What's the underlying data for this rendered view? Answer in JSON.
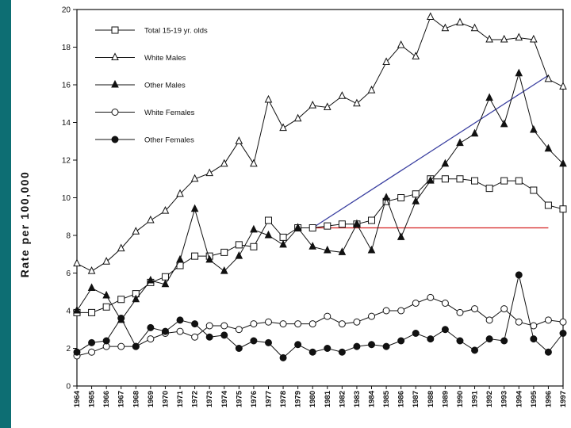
{
  "chart_data": {
    "type": "line",
    "title": "",
    "xlabel": "",
    "ylabel": "Rate per 100,000",
    "ylim": [
      0,
      20
    ],
    "yticks": [
      0,
      2,
      4,
      6,
      8,
      10,
      12,
      14,
      16,
      18,
      20
    ],
    "grid": false,
    "legend_position": "top-left",
    "x": [
      1964,
      1965,
      1966,
      1967,
      1968,
      1969,
      1970,
      1971,
      1972,
      1973,
      1974,
      1975,
      1976,
      1977,
      1978,
      1979,
      1980,
      1981,
      1982,
      1983,
      1984,
      1985,
      1986,
      1987,
      1988,
      1989,
      1990,
      1991,
      1992,
      1993,
      1994,
      1995,
      1996,
      1997
    ],
    "series": [
      {
        "name": "Total 15-19 yr. olds",
        "marker": "open-square",
        "values": [
          3.9,
          3.9,
          4.2,
          4.6,
          4.9,
          5.5,
          5.8,
          6.4,
          6.9,
          6.9,
          7.1,
          7.5,
          7.4,
          8.8,
          7.9,
          8.4,
          8.4,
          8.5,
          8.6,
          8.6,
          8.8,
          9.8,
          10.0,
          10.2,
          11.0,
          11.0,
          11.0,
          10.9,
          10.5,
          10.9,
          10.9,
          10.4,
          9.6,
          9.4
        ]
      },
      {
        "name": "White Males",
        "marker": "open-triangle",
        "values": [
          6.5,
          6.1,
          6.6,
          7.3,
          8.2,
          8.8,
          9.3,
          10.2,
          11.0,
          11.3,
          11.8,
          13.0,
          11.8,
          15.2,
          13.7,
          14.2,
          14.9,
          14.8,
          15.4,
          15.0,
          15.7,
          17.2,
          18.1,
          17.5,
          19.6,
          19.0,
          19.3,
          19.0,
          18.4,
          18.4,
          18.5,
          18.4,
          16.3,
          15.9
        ]
      },
      {
        "name": "Other Males",
        "marker": "filled-triangle",
        "values": [
          4.0,
          5.2,
          4.8,
          3.5,
          4.6,
          5.6,
          5.4,
          6.7,
          9.4,
          6.7,
          6.1,
          6.9,
          8.3,
          8.0,
          7.5,
          8.4,
          7.4,
          7.2,
          7.1,
          8.6,
          7.2,
          10.0,
          7.9,
          9.8,
          10.9,
          11.8,
          12.9,
          13.4,
          15.3,
          13.9,
          16.6,
          13.6,
          12.6,
          11.8
        ]
      },
      {
        "name": "White Females",
        "marker": "open-circle",
        "values": [
          1.6,
          1.8,
          2.1,
          2.1,
          2.1,
          2.5,
          2.8,
          2.9,
          2.6,
          3.2,
          3.2,
          3.0,
          3.3,
          3.4,
          3.3,
          3.3,
          3.3,
          3.7,
          3.3,
          3.4,
          3.7,
          4.0,
          4.0,
          4.4,
          4.7,
          4.4,
          3.9,
          4.1,
          3.5,
          4.1,
          3.4,
          3.2,
          3.5,
          3.4
        ]
      },
      {
        "name": "Other Females",
        "marker": "filled-circle",
        "values": [
          1.8,
          2.3,
          2.4,
          3.6,
          2.1,
          3.1,
          2.9,
          3.5,
          3.3,
          2.6,
          2.7,
          2.0,
          2.4,
          2.3,
          1.5,
          2.2,
          1.8,
          2.0,
          1.8,
          2.1,
          2.2,
          2.1,
          2.4,
          2.8,
          2.5,
          3.0,
          2.4,
          1.9,
          2.5,
          2.4,
          5.9,
          2.5,
          1.8,
          2.8
        ]
      }
    ],
    "annotations": [
      {
        "type": "trend-line",
        "color": "#3a3fa0",
        "from": [
          1980,
          8.4
        ],
        "to": [
          1996,
          16.5
        ]
      },
      {
        "type": "trend-line",
        "color": "#d42020",
        "from": [
          1980,
          8.4
        ],
        "to": [
          1996,
          8.4
        ]
      }
    ]
  },
  "colors": {
    "background_teal": "#0d6e73",
    "series_stroke": "#111111",
    "blue_trend": "#3a3fa0",
    "red_trend": "#d42020"
  }
}
